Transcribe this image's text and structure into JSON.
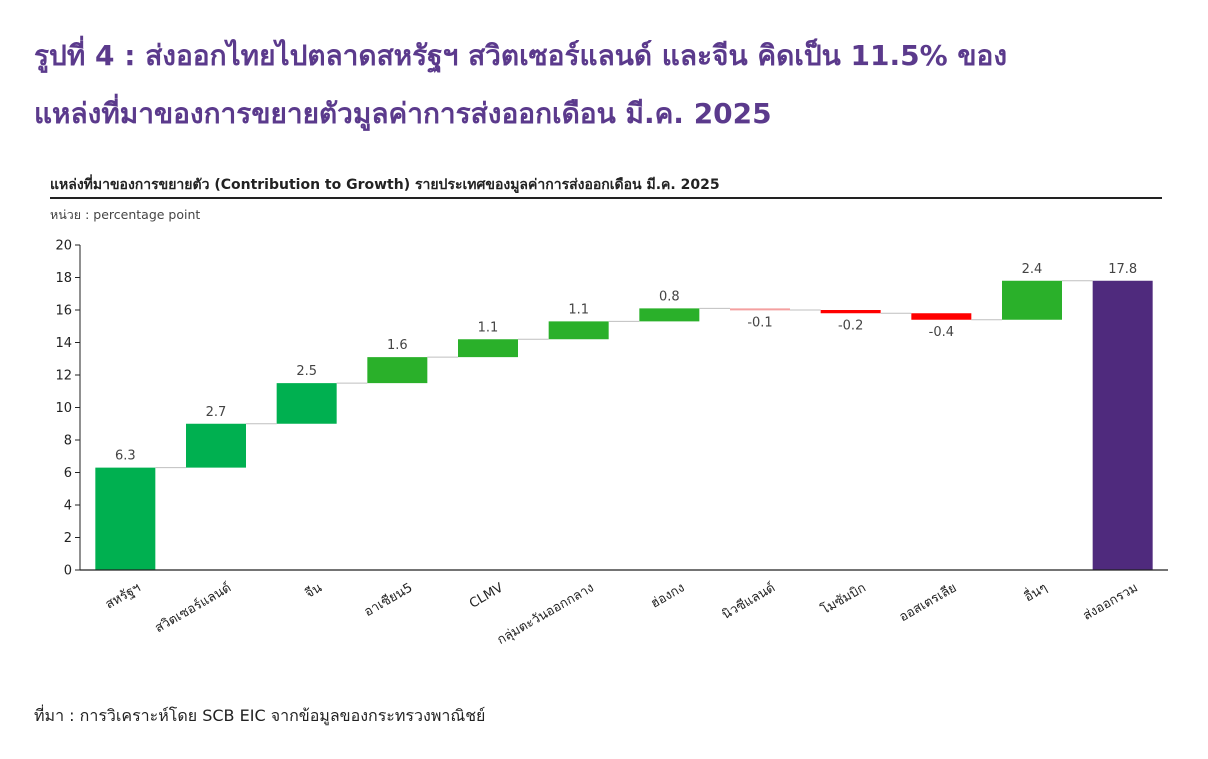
{
  "page": {
    "title_line1": "รูปที่ 4 : ส่งออกไทยไปตลาดสหรัฐฯ สวิตเซอร์แลนด์ และจีน คิดเป็น 11.5% ของ",
    "title_line2": "แหล่งที่มาของการขยายตัวมูลค่าการส่งออกเดือน มี.ค. 2025",
    "source": "ที่มา : การวิเคราะห์โดย SCB EIC จากข้อมูลของกระทรวงพาณิชย์"
  },
  "chart_data": {
    "type": "bar",
    "subtype": "waterfall",
    "title": "แหล่งที่มาของการขยายตัว (Contribution to Growth) รายประเทศของมูลค่าการส่งออกเดือน มี.ค. 2025",
    "unit_label": "หน่วย : percentage point",
    "ylim": [
      0,
      20
    ],
    "yticks": [
      0,
      2,
      4,
      6,
      8,
      10,
      12,
      14,
      16,
      18,
      20
    ],
    "grid": false,
    "legend": "none",
    "categories": [
      "สหรัฐฯ",
      "สวิตเซอร์แลนด์",
      "จีน",
      "อาเซียน5",
      "CLMV",
      "กลุ่มตะวันออกกลาง",
      "ฮ่องกง",
      "นิวซีแลนด์",
      "โมซัมบิก",
      "ออสเตรเลีย",
      "อื่นๆ",
      "ส่งออกรวม"
    ],
    "values": [
      6.3,
      2.7,
      2.5,
      1.6,
      1.1,
      1.1,
      0.8,
      -0.1,
      -0.2,
      -0.4,
      2.4,
      17.8
    ],
    "labels": [
      "6.3",
      "2.7",
      "2.5",
      "1.6",
      "1.1",
      "1.1",
      "0.8",
      "-0.1",
      "-0.2",
      "-0.4",
      "2.4",
      "17.8"
    ],
    "total_index": 11,
    "colors": {
      "increase_major": "#00b050",
      "increase": "#2ab02a",
      "decrease": "#ff0000",
      "decrease_light": "#f4a0a0",
      "total": "#4f2a7d",
      "connector": "#bfbfbf",
      "axis": "#222222"
    },
    "bar_colors": [
      "increase_major",
      "increase_major",
      "increase_major",
      "increase",
      "increase",
      "increase",
      "increase",
      "decrease_light",
      "decrease",
      "decrease",
      "increase",
      "total"
    ]
  }
}
